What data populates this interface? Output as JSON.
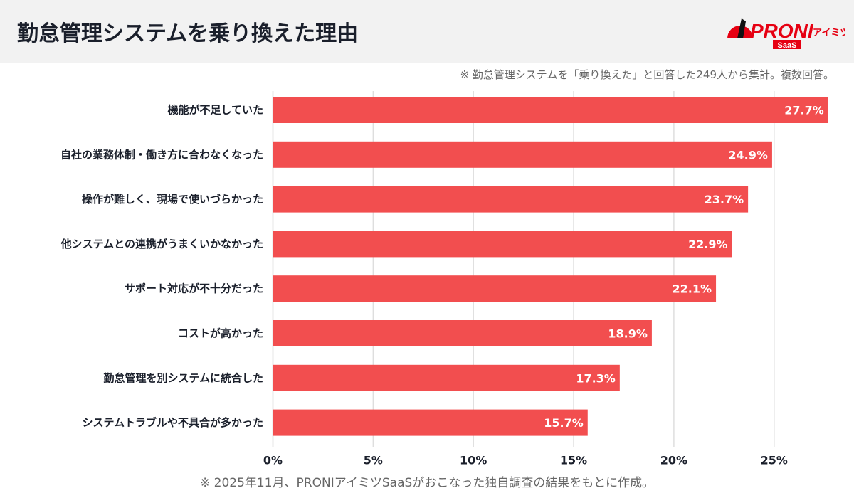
{
  "header": {
    "title": "勤怠管理システムを乗り換えた理由",
    "logo_text": "PRONIアイミツ SaaS"
  },
  "note": "※ 勤怠管理システムを「乗り換えた」と回答した249人から集計。複数回答。",
  "footer": "※ 2025年11月、PRONIアイミツSaaSがおこなった独自調査の結果をもとに作成。",
  "chart_data": {
    "type": "bar",
    "orientation": "horizontal",
    "categories": [
      "機能が不足していた",
      "自社の業務体制・働き方に合わなくなった",
      "操作が難しく、現場で使いづらかった",
      "他システムとの連携がうまくいかなかった",
      "サポート対応が不十分だった",
      "コストが高かった",
      "勤怠管理を別システムに統合した",
      "システムトラブルや不具合が多かった"
    ],
    "values": [
      27.7,
      24.9,
      23.7,
      22.9,
      22.1,
      18.9,
      17.3,
      15.7
    ],
    "value_labels": [
      "27.7%",
      "24.9%",
      "23.7%",
      "22.9%",
      "22.1%",
      "18.9%",
      "17.3%",
      "15.7%"
    ],
    "ticks": [
      "0%",
      "5%",
      "10%",
      "15%",
      "20%",
      "25%"
    ],
    "tick_values": [
      0,
      5,
      10,
      15,
      20,
      25
    ],
    "xlim": [
      0,
      28
    ],
    "grid": true,
    "bar_color": "#f24e4f"
  }
}
